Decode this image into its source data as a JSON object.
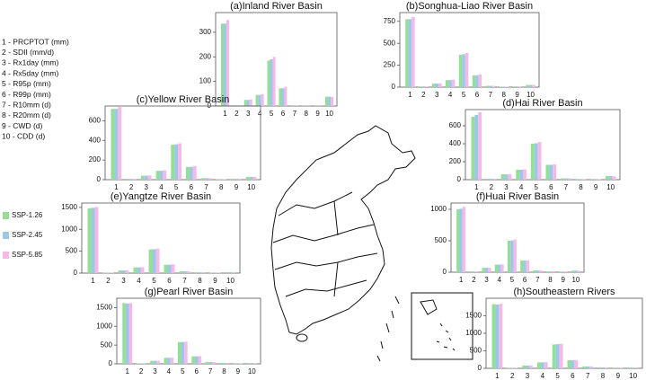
{
  "index_legend": [
    "1  - PRCPTOT (mm)",
    "2  - SDII (mm/d)",
    "3  - Rx1day (mm)",
    "4  - Rx5day (mm)",
    "5  - R95p (mm)",
    "6  - R99p (mm)",
    "7  - R10mm (d)",
    "8  - R20mm (d)",
    "9  - CWD (d)",
    "10 - CDD (d)"
  ],
  "chart_data": [
    {
      "type": "bar",
      "title": "(a)Inland River Basin",
      "categories": [
        "1",
        "2",
        "3",
        "4",
        "5",
        "6",
        "7",
        "8",
        "9",
        "10"
      ],
      "ylim": [
        0,
        380
      ],
      "yticks": [
        0,
        100,
        200,
        300
      ],
      "series": [
        {
          "name": "SSP-1.26",
          "color": "#93df93",
          "values": [
            335,
            1,
            25,
            45,
            185,
            72,
            3,
            1,
            1,
            38
          ]
        },
        {
          "name": "SSP-2.45",
          "color": "#9cc7e6",
          "values": [
            335,
            1,
            25,
            45,
            190,
            72,
            3,
            1,
            1,
            38
          ]
        },
        {
          "name": "SSP-5.85",
          "color": "#f5b9e8",
          "values": [
            350,
            1,
            27,
            48,
            200,
            78,
            3,
            1,
            1,
            37
          ]
        }
      ]
    },
    {
      "type": "bar",
      "title": "(b)Songhua-Liao River Basin",
      "categories": [
        "1",
        "2",
        "3",
        "4",
        "5",
        "6",
        "7",
        "8",
        "9",
        "10"
      ],
      "ylim": [
        0,
        850
      ],
      "yticks": [
        0,
        250,
        500,
        750
      ],
      "series": [
        {
          "name": "SSP-1.26",
          "color": "#93df93",
          "values": [
            775,
            8,
            40,
            80,
            370,
            135,
            15,
            5,
            8,
            25
          ]
        },
        {
          "name": "SSP-2.45",
          "color": "#9cc7e6",
          "values": [
            775,
            8,
            40,
            80,
            375,
            135,
            15,
            5,
            8,
            25
          ]
        },
        {
          "name": "SSP-5.85",
          "color": "#f5b9e8",
          "values": [
            800,
            8,
            42,
            85,
            390,
            145,
            15,
            5,
            8,
            24
          ]
        }
      ]
    },
    {
      "type": "bar",
      "title": "(c)Yellow River Basin",
      "categories": [
        "1",
        "2",
        "3",
        "4",
        "5",
        "6",
        "7",
        "8",
        "9",
        "10"
      ],
      "ylim": [
        0,
        750
      ],
      "yticks": [
        0,
        200,
        400,
        600
      ],
      "series": [
        {
          "name": "SSP-1.26",
          "color": "#93df93",
          "values": [
            720,
            8,
            40,
            90,
            355,
            130,
            15,
            5,
            8,
            28
          ]
        },
        {
          "name": "SSP-2.45",
          "color": "#9cc7e6",
          "values": [
            720,
            8,
            40,
            90,
            360,
            130,
            15,
            5,
            8,
            28
          ]
        },
        {
          "name": "SSP-5.85",
          "color": "#f5b9e8",
          "values": [
            740,
            8,
            42,
            95,
            370,
            140,
            15,
            5,
            8,
            27
          ]
        }
      ]
    },
    {
      "type": "bar",
      "title": "(d)Hai River Basin",
      "categories": [
        "1",
        "2",
        "3",
        "4",
        "5",
        "6",
        "7",
        "8",
        "9",
        "10"
      ],
      "ylim": [
        0,
        780
      ],
      "yticks": [
        0,
        200,
        400,
        600
      ],
      "series": [
        {
          "name": "SSP-1.26",
          "color": "#93df93",
          "values": [
            700,
            10,
            60,
            110,
            400,
            165,
            15,
            7,
            7,
            40
          ]
        },
        {
          "name": "SSP-2.45",
          "color": "#9cc7e6",
          "values": [
            720,
            10,
            60,
            110,
            405,
            165,
            15,
            7,
            7,
            40
          ]
        },
        {
          "name": "SSP-5.85",
          "color": "#f5b9e8",
          "values": [
            750,
            10,
            62,
            115,
            420,
            170,
            15,
            7,
            7,
            38
          ]
        }
      ]
    },
    {
      "type": "bar",
      "title": "(e)Yangtze River Basin",
      "categories": [
        "1",
        "2",
        "3",
        "4",
        "5",
        "6",
        "7",
        "8",
        "9",
        "10"
      ],
      "ylim": [
        0,
        1600
      ],
      "yticks": [
        0,
        500,
        1000,
        1500
      ],
      "series": [
        {
          "name": "SSP-1.26",
          "color": "#93df93",
          "values": [
            1480,
            12,
            60,
            130,
            540,
            190,
            40,
            18,
            12,
            20
          ]
        },
        {
          "name": "SSP-2.45",
          "color": "#9cc7e6",
          "values": [
            1490,
            12,
            60,
            130,
            545,
            190,
            40,
            18,
            12,
            20
          ]
        },
        {
          "name": "SSP-5.85",
          "color": "#f5b9e8",
          "values": [
            1510,
            12,
            62,
            135,
            560,
            200,
            40,
            18,
            12,
            20
          ]
        }
      ]
    },
    {
      "type": "bar",
      "title": "(f)Huai River Basin",
      "categories": [
        "1",
        "2",
        "3",
        "4",
        "5",
        "6",
        "7",
        "8",
        "9",
        "10"
      ],
      "ylim": [
        0,
        1100
      ],
      "yticks": [
        0,
        500,
        1000
      ],
      "series": [
        {
          "name": "SSP-1.26",
          "color": "#93df93",
          "values": [
            1000,
            12,
            70,
            120,
            500,
            185,
            30,
            12,
            10,
            25
          ]
        },
        {
          "name": "SSP-2.45",
          "color": "#9cc7e6",
          "values": [
            1010,
            12,
            70,
            120,
            505,
            185,
            30,
            12,
            10,
            25
          ]
        },
        {
          "name": "SSP-5.85",
          "color": "#f5b9e8",
          "values": [
            1040,
            12,
            72,
            125,
            520,
            190,
            30,
            12,
            10,
            25
          ]
        }
      ]
    },
    {
      "type": "bar",
      "title": "(g)Pearl River Basin",
      "categories": [
        "1",
        "2",
        "3",
        "4",
        "5",
        "6",
        "7",
        "8",
        "9",
        "10"
      ],
      "ylim": [
        0,
        1750
      ],
      "yticks": [
        0,
        500,
        1000,
        1500
      ],
      "series": [
        {
          "name": "SSP-1.26",
          "color": "#93df93",
          "values": [
            1620,
            15,
            80,
            160,
            580,
            200,
            50,
            25,
            15,
            20
          ]
        },
        {
          "name": "SSP-2.45",
          "color": "#9cc7e6",
          "values": [
            1610,
            15,
            80,
            160,
            580,
            200,
            50,
            25,
            15,
            20
          ]
        },
        {
          "name": "SSP-5.85",
          "color": "#f5b9e8",
          "values": [
            1620,
            15,
            82,
            165,
            590,
            205,
            50,
            25,
            15,
            20
          ]
        }
      ]
    },
    {
      "type": "bar",
      "title": "(h)Southeastern Rivers",
      "categories": [
        "1",
        "2",
        "3",
        "4",
        "5",
        "6",
        "7",
        "8",
        "9",
        "10"
      ],
      "ylim": [
        0,
        2000
      ],
      "yticks": [
        0,
        500,
        1000,
        1500
      ],
      "series": [
        {
          "name": "SSP-1.26",
          "color": "#93df93",
          "values": [
            1830,
            15,
            80,
            170,
            680,
            230,
            55,
            28,
            18,
            22
          ]
        },
        {
          "name": "SSP-2.45",
          "color": "#9cc7e6",
          "values": [
            1820,
            15,
            80,
            170,
            690,
            230,
            55,
            28,
            18,
            22
          ]
        },
        {
          "name": "SSP-5.85",
          "color": "#f5b9e8",
          "values": [
            1840,
            15,
            82,
            175,
            700,
            235,
            55,
            28,
            18,
            22
          ]
        }
      ]
    }
  ]
}
